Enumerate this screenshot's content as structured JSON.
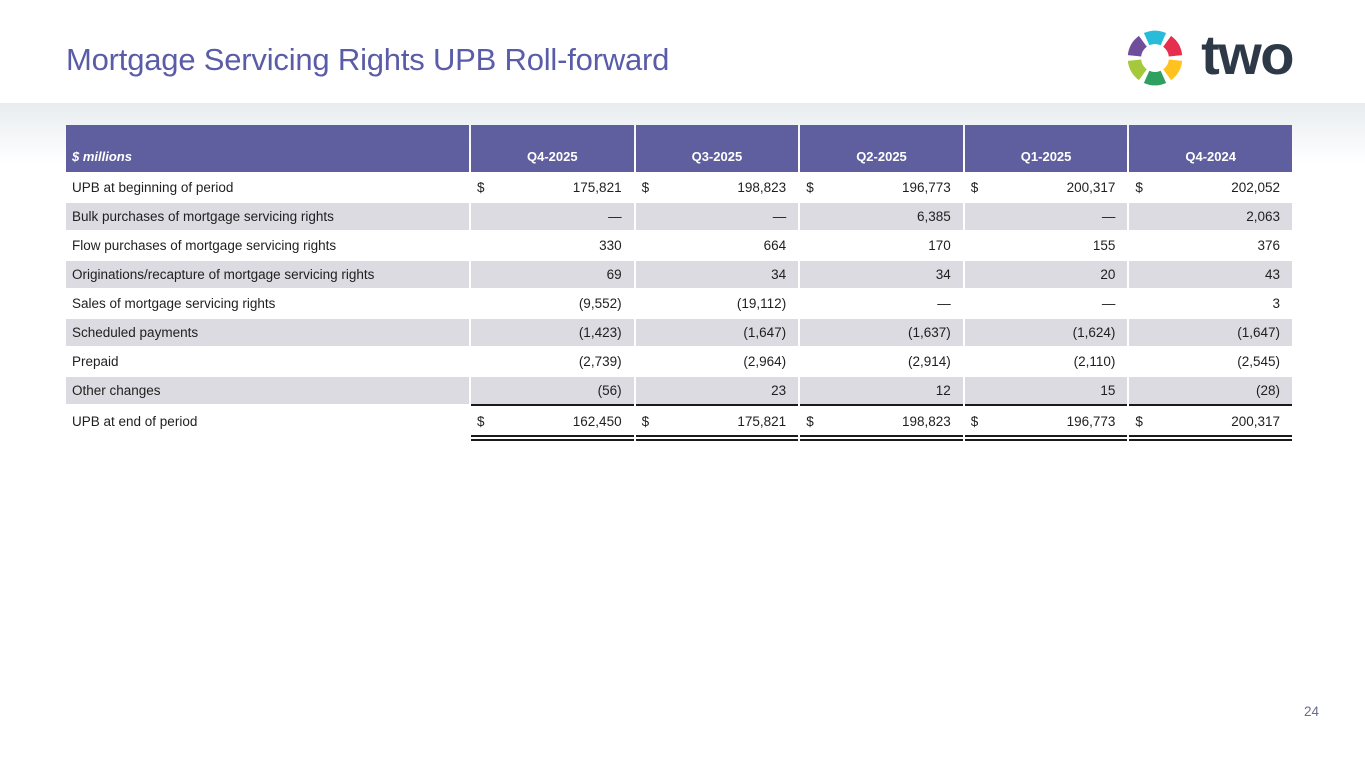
{
  "slide": {
    "title": "Mortgage Servicing Rights UPB Roll-forward",
    "page_number": "24",
    "logo_wordmark": "two"
  },
  "colors": {
    "title": "#5B5CA8",
    "header_bg": "#5F5FA0",
    "shade": "#DBDBE1",
    "text": "#1F1F1F",
    "rule": "#1A1A1A",
    "logo_text": "#2E3948",
    "page_number": "#6B6B93",
    "band_top": "#E8ECEF",
    "logo_arms": [
      "#29BCD9",
      "#E62E4F",
      "#FFC21E",
      "#2FA05F",
      "#A5C93B",
      "#6F4E9C"
    ]
  },
  "table": {
    "unit_label": "$ millions",
    "currency_symbol": "$",
    "columns": [
      "Q4-2025",
      "Q3-2025",
      "Q2-2025",
      "Q1-2025",
      "Q4-2024"
    ],
    "rows": [
      {
        "label": "UPB at beginning of period",
        "dollar": true,
        "values": [
          "175,821",
          "198,823",
          "196,773",
          "200,317",
          "202,052"
        ]
      },
      {
        "label": "Bulk purchases of mortgage servicing rights",
        "values": [
          "—",
          "—",
          "6,385",
          "—",
          "2,063"
        ]
      },
      {
        "label": "Flow purchases of mortgage servicing rights",
        "values": [
          "330",
          "664",
          "170",
          "155",
          "376"
        ]
      },
      {
        "label": "Originations/recapture of mortgage servicing rights",
        "values": [
          "69",
          "34",
          "34",
          "20",
          "43"
        ]
      },
      {
        "label": "Sales of mortgage servicing rights",
        "values": [
          "(9,552)",
          "(19,112)",
          "—",
          "—",
          "3"
        ]
      },
      {
        "label": "Scheduled payments",
        "values": [
          "(1,423)",
          "(1,647)",
          "(1,637)",
          "(1,624)",
          "(1,647)"
        ]
      },
      {
        "label": "Prepaid",
        "values": [
          "(2,739)",
          "(2,964)",
          "(2,914)",
          "(2,110)",
          "(2,545)"
        ]
      },
      {
        "label": "Other changes",
        "rule_below": true,
        "values": [
          "(56)",
          "23",
          "12",
          "15",
          "(28)"
        ]
      },
      {
        "label": "UPB at end of period",
        "dollar": true,
        "double_rule_below": true,
        "values": [
          "162,450",
          "175,821",
          "198,823",
          "196,773",
          "200,317"
        ]
      }
    ]
  }
}
